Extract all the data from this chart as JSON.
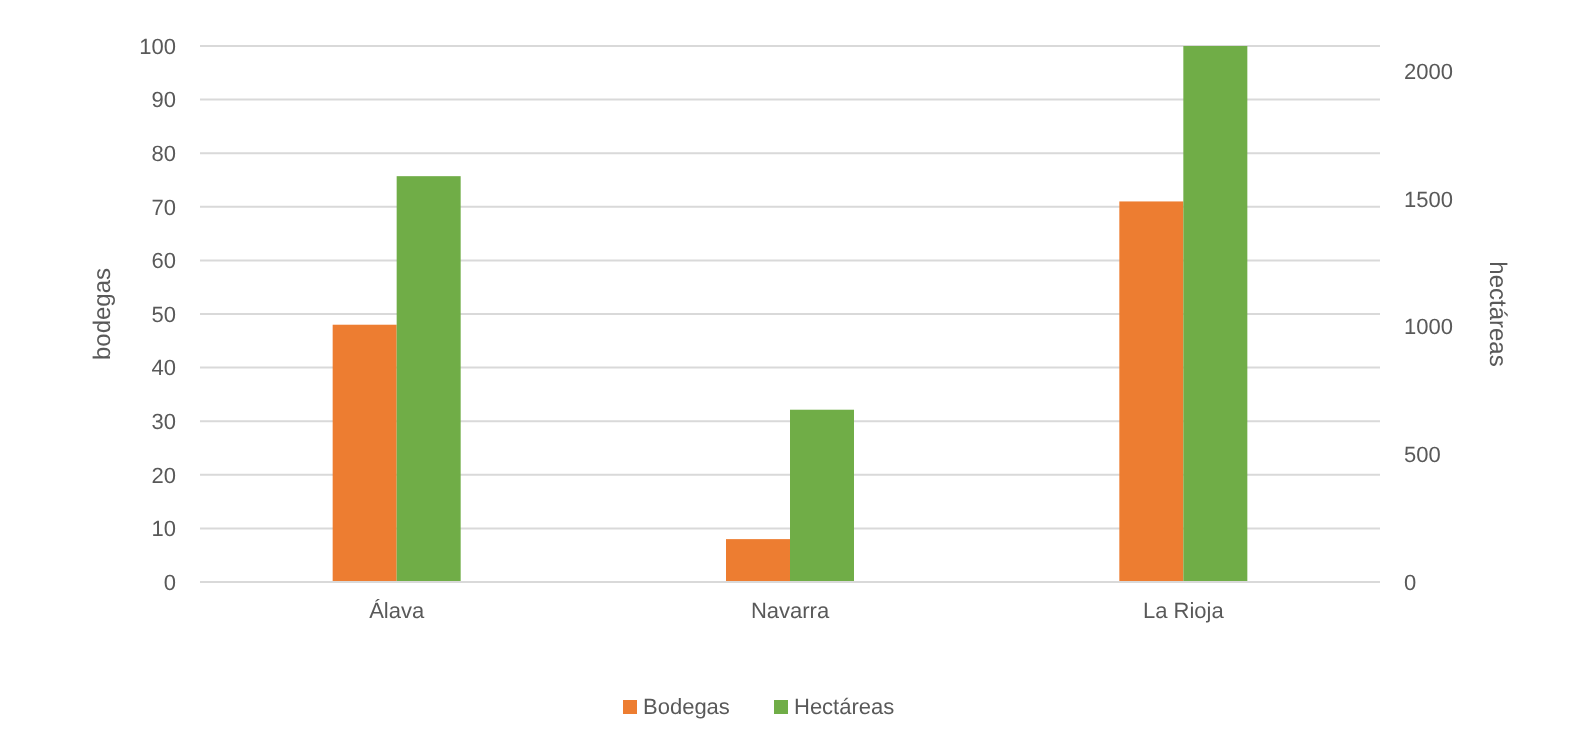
{
  "chart_data": {
    "type": "bar",
    "categories": [
      "Álava",
      "Navarra",
      "La Rioja"
    ],
    "series": [
      {
        "name": "Bodegas",
        "color": "#ed7d31",
        "values": [
          48,
          8,
          71
        ]
      },
      {
        "name": "Hectáreas",
        "color": "#70ad47",
        "values": [
          1590,
          675,
          2100
        ],
        "axis": "y2"
      }
    ],
    "ylabel": "bodegas",
    "y2label": "hectáreas",
    "ylim": [
      0,
      100
    ],
    "yticks": [
      0,
      10,
      20,
      30,
      40,
      50,
      60,
      70,
      80,
      90,
      100
    ],
    "y2lim": [
      0,
      2100
    ],
    "y2ticks": [
      0,
      500,
      1000,
      1500,
      2000
    ],
    "grid": "y",
    "legend": "bottom"
  }
}
